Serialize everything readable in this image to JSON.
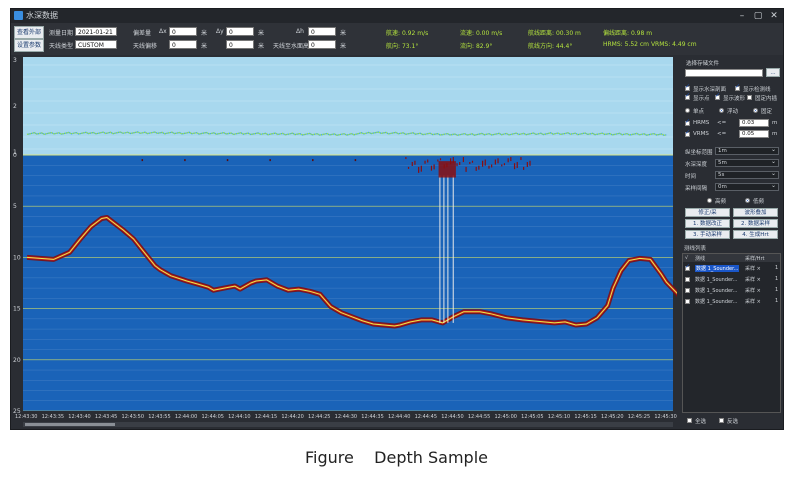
{
  "window": {
    "title": "水深数据"
  },
  "toolbar": {
    "btn_view": "查看外部",
    "btn_params": "设置参数",
    "date_label": "测量日期",
    "date_value": "2021-01-21",
    "sensor_label": "天线类型",
    "sensor_value": "CUSTOM",
    "offset_label": "偏差量",
    "dx_label": "Δx",
    "dx_value": "0",
    "dy_label": "Δy",
    "dy_value": "0",
    "dh_label": "Δh",
    "dh_value": "0",
    "unit_m": "米",
    "tilt_label": "天线偏移",
    "tilt_value": "0",
    "tilt2_value": "0",
    "height_label": "天线至水面高",
    "height_value": "0"
  },
  "stats": {
    "speed_label": "航速:",
    "speed_value": "0.92 m/s",
    "flow_label": "流速:",
    "flow_value": "0.00 m/s",
    "ship_dist_label": "航线距离:",
    "ship_dist_value": "00.30 m",
    "line_dist_label": "偏线距离:",
    "line_dist_value": "0.98 m",
    "heading_label": "航向:",
    "heading_value": "73.1°",
    "flow_dir_label": "流向:",
    "flow_dir_value": "82.9°",
    "route_dir_label": "航线方向:",
    "route_dir_value": "44.4°",
    "hrms_label": "HRMS:",
    "hrms_value": "5.52 cm",
    "vrms_label": "VRMS:",
    "vrms_value": "4.49 cm"
  },
  "panel": {
    "file_label": "选择存储文件",
    "browse": "...",
    "cb_show_water": "显示水深剖面",
    "cb_show_line": "显示检测线",
    "cb_show_points": "显示点",
    "cb_show_wave": "显示波形",
    "cb_lock": "固定内插",
    "mode_single": "单点",
    "mode_float": "浮动",
    "mode_fixed": "固定",
    "hrms_label": "HRMS",
    "vrms_label": "VRMS",
    "lte": "<=",
    "hrms_limit": "0.03",
    "vrms_limit": "0.05",
    "unit_m": "m",
    "sel1_label": "纵坐标范围",
    "sel1_value": "1m",
    "sel2_label": "水深深度",
    "sel2_value": "5m",
    "sel3_label": "时间",
    "sel3_value": "5s",
    "sel4_label": "采样间隔",
    "sel4_value": "0m",
    "radio_high": "高频",
    "radio_low": "低频",
    "btn_collect": "修正/采",
    "btn_wave": "波形叠加",
    "btn_1": "1. 数据改正",
    "btn_2": "2. 数据采样",
    "btn_3": "3. 手动采样",
    "btn_4": "4. 生成Hrt",
    "table_title": "测线列表",
    "col_check": "√",
    "col_name": "测线",
    "col_sample": "采样/Hrt",
    "rows": [
      {
        "name": "数据 1_Sounder...",
        "sample": "采样 ×",
        "extra": "1"
      },
      {
        "name": "数据 1_Sounder...",
        "sample": "采样 ×",
        "extra": "1"
      },
      {
        "name": "数据 1_Sounder...",
        "sample": "采样 ×",
        "extra": "1"
      },
      {
        "name": "数据 1_Sounder...",
        "sample": "采样 ×",
        "extra": "1"
      }
    ],
    "select_all": "全选",
    "invert": "反选"
  },
  "chart_data": {
    "type": "line",
    "title": "",
    "upper_panel": {
      "y_ticks": [
        "3",
        "2",
        "1"
      ],
      "ylim": [
        1,
        3
      ]
    },
    "lower_panel": {
      "y_ticks": [
        "0",
        "5",
        "10",
        "15",
        "20",
        "25"
      ],
      "ylim": [
        0,
        25
      ]
    },
    "x_ticks": [
      "12:43:30",
      "12:43:35",
      "12:43:40",
      "12:43:45",
      "12:43:50",
      "12:43:55",
      "12:44:00",
      "12:44:05",
      "12:44:10",
      "12:44:15",
      "12:44:20",
      "12:44:25",
      "12:44:30",
      "12:44:35",
      "12:44:40",
      "12:44:45",
      "12:44:50",
      "12:44:55",
      "12:45:00",
      "12:45:05",
      "12:45:10",
      "12:45:15",
      "12:45:20",
      "12:45:25",
      "12:45:30"
    ],
    "series": [
      {
        "name": "depth",
        "x": [
          0,
          1,
          1.6,
          2,
          2.4,
          2.8,
          3,
          3.2,
          3.6,
          4,
          4.4,
          4.8,
          5,
          5.4,
          6,
          6.4,
          6.8,
          7,
          7.4,
          7.8,
          8,
          8.4,
          8.6,
          9,
          9.4,
          9.8,
          10.2,
          10.6,
          11,
          11.4,
          11.8,
          12.2,
          12.6,
          13,
          13.4,
          13.8,
          14,
          14.4,
          14.8,
          15.2,
          15.6,
          16,
          16.4,
          17,
          17.4,
          18,
          18.6,
          19,
          19.4,
          19.8,
          20.2,
          20.6,
          21,
          21.4,
          21.8,
          22,
          22.3,
          22.6,
          23,
          23.4,
          23.8,
          24,
          24.4,
          24.6
        ],
        "values": [
          10,
          10.2,
          9.5,
          8.2,
          7,
          6.2,
          6.1,
          6.5,
          7.3,
          8.2,
          9.5,
          10.8,
          11.2,
          11.8,
          12.3,
          12.6,
          12.9,
          13.2,
          13,
          12.8,
          13.1,
          12.5,
          12.3,
          12.2,
          12.8,
          13.2,
          13.1,
          13.3,
          13.6,
          14.8,
          15.4,
          15.8,
          16.2,
          16.5,
          16.6,
          16.7,
          16.6,
          16.3,
          16.1,
          16.1,
          16.4,
          15.8,
          15.3,
          15.3,
          15.5,
          15.9,
          16.1,
          16.2,
          16.3,
          16.4,
          16.3,
          16.6,
          16.5,
          15.9,
          14.7,
          13,
          11.3,
          10.3,
          10.1,
          10.2,
          11.6,
          12.4,
          13.5,
          14.2
        ]
      },
      {
        "name": "reference",
        "x": [
          0,
          4,
          8,
          12,
          13,
          16,
          20,
          24,
          24.6
        ],
        "values": [
          1.4,
          1.42,
          1.4,
          1.38,
          1.42,
          1.38,
          1.4,
          1.38,
          1.4
        ]
      },
      {
        "name": "spikes",
        "x": [
          15.5,
          15.65,
          15.8,
          16.0
        ],
        "values": [
          2,
          2,
          2,
          2
        ]
      }
    ]
  }
}
